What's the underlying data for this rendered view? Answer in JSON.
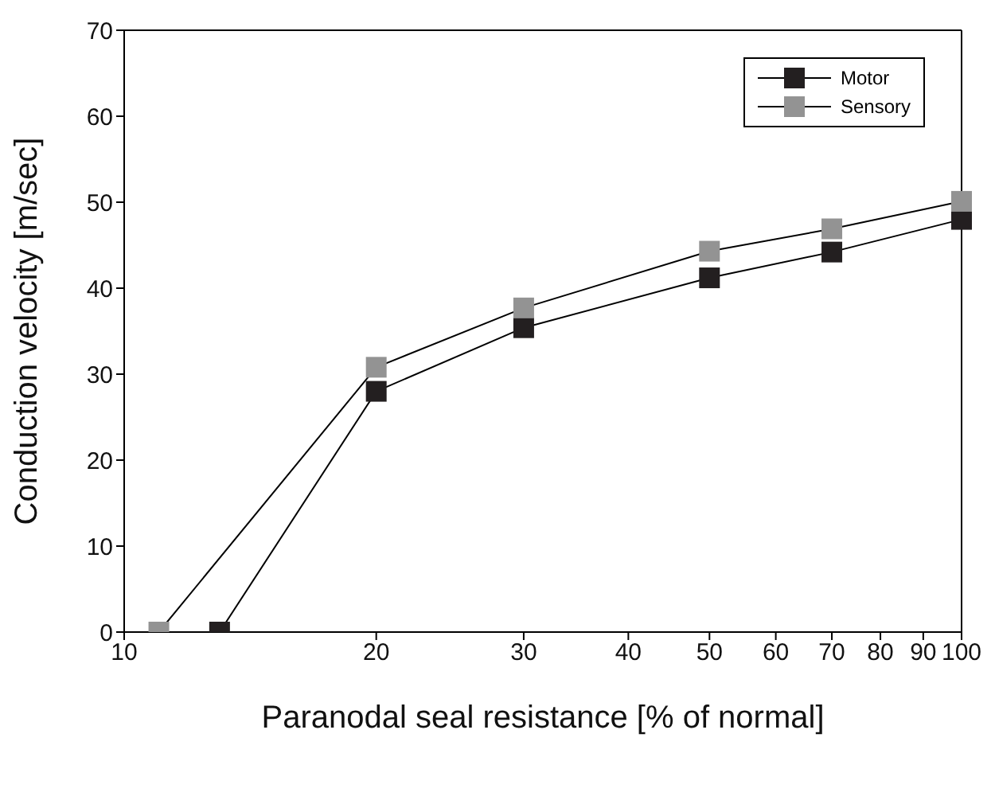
{
  "chart_data": {
    "type": "line",
    "xlabel": "Paranodal seal resistance [% of normal]",
    "ylabel": "Conduction velocity [m/sec]",
    "log": "x",
    "xlim": [
      10,
      100
    ],
    "xticks": [
      10,
      20,
      30,
      40,
      50,
      60,
      70,
      80,
      90,
      100
    ],
    "ylim": [
      0,
      70
    ],
    "yticks": [
      0,
      10,
      20,
      30,
      40,
      50,
      60,
      70
    ],
    "grid": false,
    "legend": "top right",
    "marker": "square",
    "line_style": "solid",
    "series": [
      {
        "name": "Motor",
        "color": "#231f20",
        "x": [
          13,
          20,
          30,
          50,
          70,
          100
        ],
        "values": [
          0,
          28.0,
          35.4,
          41.2,
          44.2,
          48.0
        ]
      },
      {
        "name": "Sensory",
        "color": "#939393",
        "x": [
          11,
          20,
          30,
          50,
          70,
          100
        ],
        "values": [
          0,
          30.8,
          37.7,
          44.3,
          46.9,
          50.1
        ]
      }
    ]
  }
}
